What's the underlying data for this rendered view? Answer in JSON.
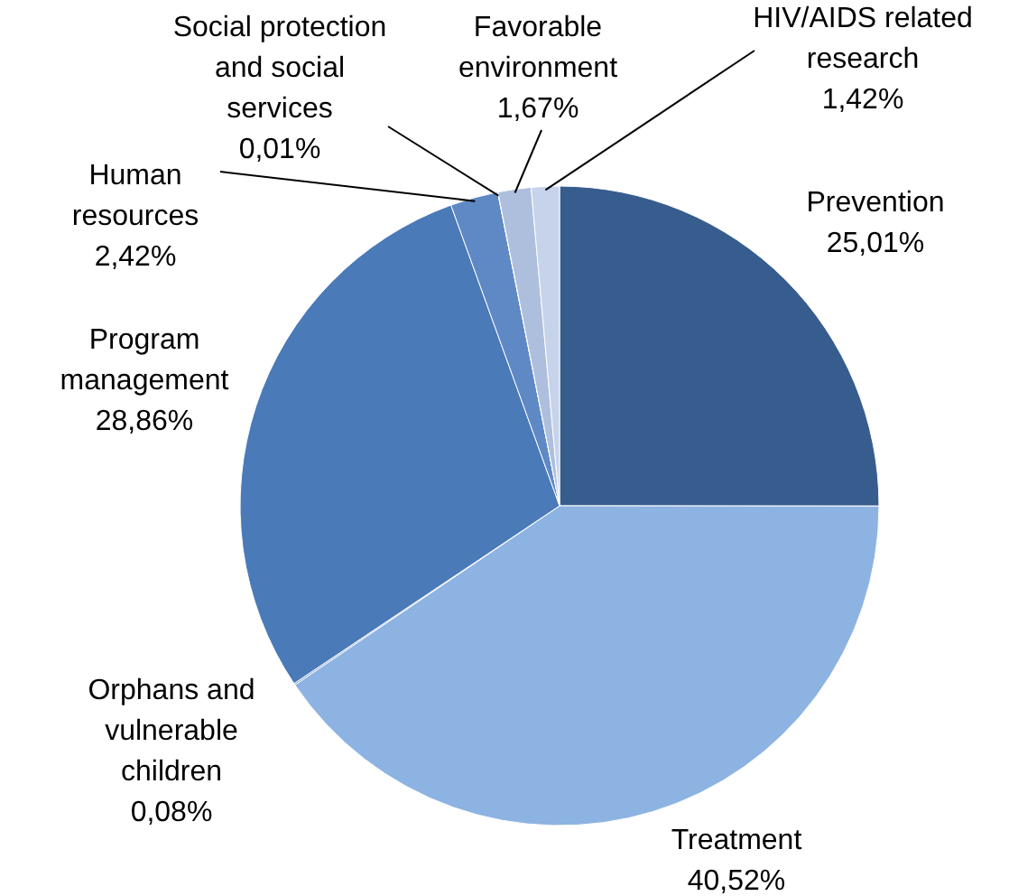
{
  "chart_data": {
    "type": "pie",
    "categories": [
      "Prevention",
      "Treatment",
      "Orphans and\nvulnerable\nchildren",
      "Program\nmanagement",
      "Human\nresources",
      "Social protection\nand social\nservices",
      "Favorable\nenvironment",
      "HIV/AIDS related\nresearch"
    ],
    "values": [
      25.01,
      40.52,
      0.08,
      28.86,
      2.42,
      0.01,
      1.67,
      1.42
    ],
    "value_labels": [
      "25,01%",
      "40,52%",
      "0,08%",
      "28,86%",
      "2,42%",
      "0,01%",
      "1,67%",
      "1,42%"
    ],
    "colors": [
      "#375d8e",
      "#8db3e2",
      "#6f93c8",
      "#4a7ab8",
      "#5f89c4",
      "#8fa8d4",
      "#aebfde",
      "#c7d3ea"
    ]
  }
}
